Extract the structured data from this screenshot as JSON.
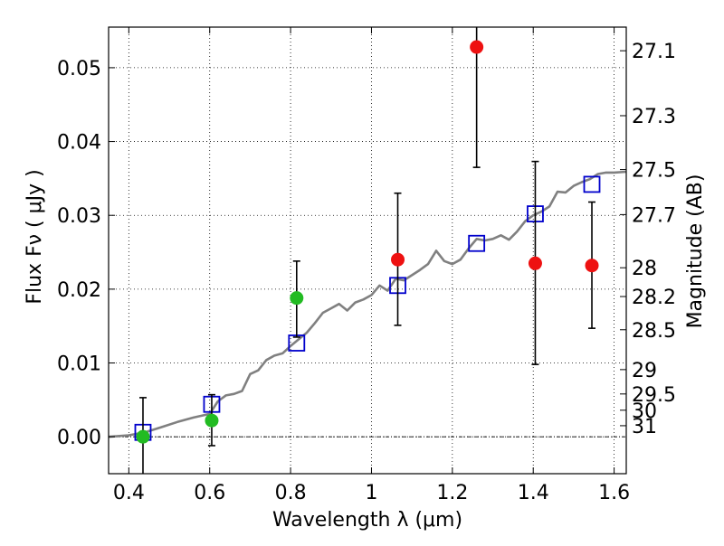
{
  "chart_data": {
    "type": "scatter",
    "xlabel": "Wavelength  λ (μm)",
    "ylabel": "Flux  Fν  ( μJy )",
    "y2label": "Magnitude (AB)",
    "xlim": [
      0.35,
      1.63
    ],
    "ylim": [
      -0.005,
      0.0555
    ],
    "grid": true,
    "x_ticks": [
      {
        "value": 0.4,
        "label": "0.4"
      },
      {
        "value": 0.6,
        "label": "0.6"
      },
      {
        "value": 0.8,
        "label": "0.8"
      },
      {
        "value": 1.0,
        "label": "1"
      },
      {
        "value": 1.2,
        "label": "1.2"
      },
      {
        "value": 1.4,
        "label": "1.4"
      },
      {
        "value": 1.6,
        "label": "1.6"
      }
    ],
    "y_ticks": [
      {
        "value": 0.0,
        "label": "0.00"
      },
      {
        "value": 0.01,
        "label": "0.01"
      },
      {
        "value": 0.02,
        "label": "0.02"
      },
      {
        "value": 0.03,
        "label": "0.03"
      },
      {
        "value": 0.04,
        "label": "0.04"
      },
      {
        "value": 0.05,
        "label": "0.05"
      }
    ],
    "y2_ticks": [
      {
        "flux": 0.0523,
        "label": "27.1"
      },
      {
        "flux": 0.0435,
        "label": "27.3"
      },
      {
        "flux": 0.0362,
        "label": "27.5"
      },
      {
        "flux": 0.0301,
        "label": "27.7"
      },
      {
        "flux": 0.0229,
        "label": "28"
      },
      {
        "flux": 0.019,
        "label": "28.2"
      },
      {
        "flux": 0.0145,
        "label": "28.5"
      },
      {
        "flux": 0.0091,
        "label": "29"
      },
      {
        "flux": 0.0058,
        "label": "29.5"
      },
      {
        "flux": 0.0036,
        "label": "30"
      },
      {
        "flux": 0.0015,
        "label": "31"
      }
    ],
    "series": [
      {
        "type": "line",
        "color": "#808080",
        "x": [
          0.35,
          0.4,
          0.44,
          0.48,
          0.52,
          0.56,
          0.6,
          0.62,
          0.64,
          0.66,
          0.68,
          0.7,
          0.72,
          0.74,
          0.76,
          0.78,
          0.8,
          0.82,
          0.84,
          0.86,
          0.88,
          0.9,
          0.92,
          0.94,
          0.96,
          0.98,
          1.0,
          1.02,
          1.04,
          1.06,
          1.08,
          1.1,
          1.12,
          1.14,
          1.16,
          1.18,
          1.2,
          1.22,
          1.24,
          1.26,
          1.28,
          1.3,
          1.32,
          1.34,
          1.36,
          1.38,
          1.4,
          1.42,
          1.44,
          1.46,
          1.48,
          1.5,
          1.52,
          1.54,
          1.56,
          1.58,
          1.6,
          1.63
        ],
        "y": [
          0.0,
          0.0002,
          0.0006,
          0.0013,
          0.002,
          0.0026,
          0.0031,
          0.0048,
          0.0056,
          0.0058,
          0.0062,
          0.0085,
          0.009,
          0.0104,
          0.011,
          0.0113,
          0.0123,
          0.0132,
          0.0141,
          0.0154,
          0.0168,
          0.0174,
          0.018,
          0.0171,
          0.0182,
          0.0186,
          0.0192,
          0.0205,
          0.0198,
          0.0214,
          0.0212,
          0.0219,
          0.0226,
          0.0234,
          0.0252,
          0.0238,
          0.0234,
          0.024,
          0.0255,
          0.0268,
          0.0266,
          0.0268,
          0.0273,
          0.0267,
          0.0278,
          0.0292,
          0.03,
          0.0305,
          0.0312,
          0.0332,
          0.0331,
          0.034,
          0.0345,
          0.0349,
          0.0356,
          0.0358,
          0.0358,
          0.0359
        ]
      },
      {
        "type": "square-open",
        "color": "#0000cc",
        "x": [
          0.435,
          0.605,
          0.815,
          1.065,
          1.26,
          1.405,
          1.545
        ],
        "y": [
          0.0006,
          0.0044,
          0.0127,
          0.0205,
          0.0262,
          0.0302,
          0.0342
        ]
      },
      {
        "type": "circle-filled",
        "color": "#22bb22",
        "x": [
          0.435,
          0.605,
          0.815
        ],
        "y": [
          0.0,
          0.0022,
          0.0188
        ],
        "yerr_low": [
          null,
          -0.0012,
          0.0135
        ],
        "yerr_high": [
          0.0053,
          0.0057,
          0.0238
        ]
      },
      {
        "type": "circle-filled",
        "color": "#ee1111",
        "x": [
          1.065,
          1.26,
          1.405,
          1.545
        ],
        "y": [
          0.024,
          0.0528,
          0.0235,
          0.0232
        ],
        "yerr_low": [
          0.0151,
          0.0365,
          0.0098,
          0.0147
        ],
        "yerr_high": [
          0.033,
          0.056,
          0.0373,
          0.0318
        ]
      }
    ]
  }
}
